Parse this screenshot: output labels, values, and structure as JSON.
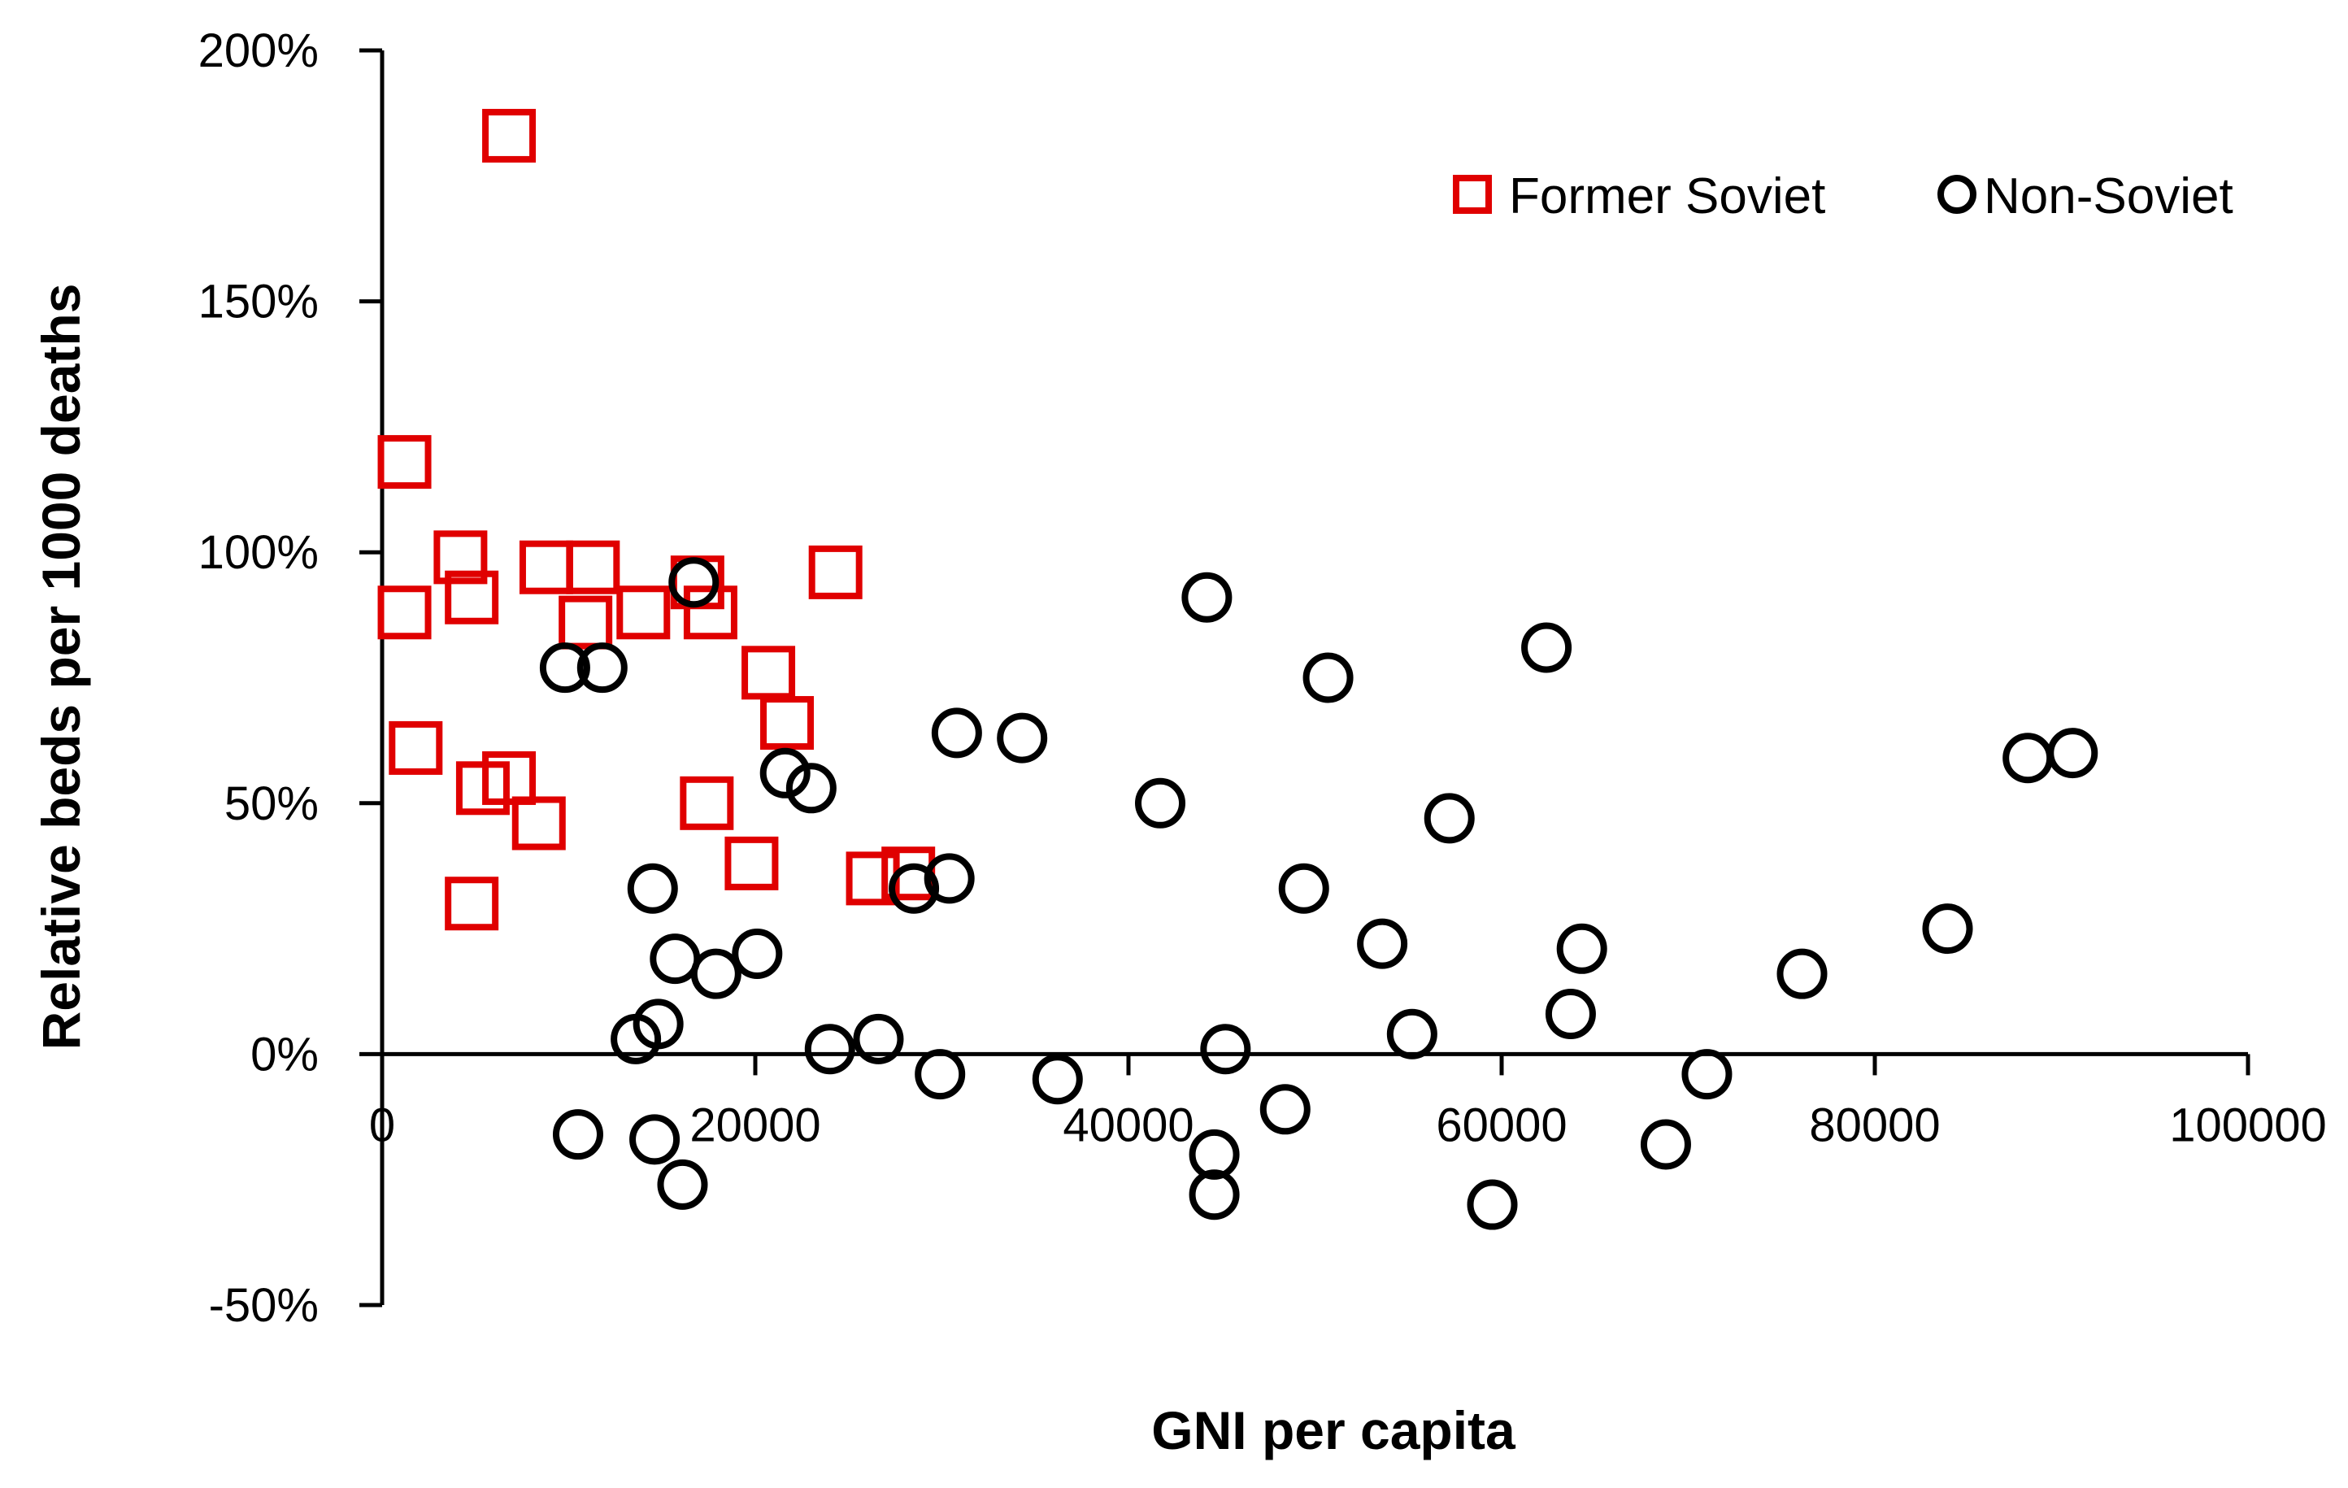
{
  "chart_data": {
    "type": "scatter",
    "title": "",
    "xlabel": "GNI per capita",
    "ylabel": "Relative beds per 1000 deaths",
    "xlim": [
      0,
      100000
    ],
    "ylim": [
      -50,
      200
    ],
    "x_ticks": [
      0,
      20000,
      40000,
      60000,
      80000,
      100000
    ],
    "x_tick_labels": [
      "0",
      "20000",
      "40000",
      "60000",
      "80000",
      "100000"
    ],
    "y_ticks": [
      -50,
      0,
      50,
      100,
      150,
      200
    ],
    "y_tick_labels": [
      "-50%",
      "0%",
      "50%",
      "100%",
      "150%",
      "200%"
    ],
    "grid": false,
    "legend_position": "top-right",
    "series": [
      {
        "name": "Former Soviet",
        "marker": "square",
        "color": "#e00000",
        "points": [
          {
            "x": 6800,
            "y": 183
          },
          {
            "x": 1200,
            "y": 118
          },
          {
            "x": 1200,
            "y": 88
          },
          {
            "x": 4200,
            "y": 99
          },
          {
            "x": 4800,
            "y": 91
          },
          {
            "x": 8800,
            "y": 97
          },
          {
            "x": 11300,
            "y": 97
          },
          {
            "x": 10900,
            "y": 86
          },
          {
            "x": 14000,
            "y": 88
          },
          {
            "x": 16900,
            "y": 94
          },
          {
            "x": 17600,
            "y": 88
          },
          {
            "x": 24300,
            "y": 96
          },
          {
            "x": 20700,
            "y": 76
          },
          {
            "x": 21700,
            "y": 66
          },
          {
            "x": 1800,
            "y": 61
          },
          {
            "x": 5400,
            "y": 53
          },
          {
            "x": 6800,
            "y": 55
          },
          {
            "x": 8400,
            "y": 46
          },
          {
            "x": 17400,
            "y": 50
          },
          {
            "x": 19800,
            "y": 38
          },
          {
            "x": 26300,
            "y": 35
          },
          {
            "x": 28200,
            "y": 36
          },
          {
            "x": 4800,
            "y": 30
          }
        ]
      },
      {
        "name": "Non-Soviet",
        "marker": "circle",
        "color": "#000000",
        "points": [
          {
            "x": 16700,
            "y": 94
          },
          {
            "x": 44200,
            "y": 91
          },
          {
            "x": 62400,
            "y": 81
          },
          {
            "x": 9800,
            "y": 77
          },
          {
            "x": 11800,
            "y": 77
          },
          {
            "x": 50700,
            "y": 75
          },
          {
            "x": 30800,
            "y": 64
          },
          {
            "x": 34300,
            "y": 63
          },
          {
            "x": 88200,
            "y": 59
          },
          {
            "x": 90600,
            "y": 60
          },
          {
            "x": 21600,
            "y": 56
          },
          {
            "x": 23000,
            "y": 53
          },
          {
            "x": 41700,
            "y": 50
          },
          {
            "x": 57200,
            "y": 47
          },
          {
            "x": 30400,
            "y": 35
          },
          {
            "x": 28500,
            "y": 33
          },
          {
            "x": 14500,
            "y": 33
          },
          {
            "x": 49400,
            "y": 33
          },
          {
            "x": 83900,
            "y": 25
          },
          {
            "x": 53600,
            "y": 22
          },
          {
            "x": 64300,
            "y": 21
          },
          {
            "x": 15700,
            "y": 19
          },
          {
            "x": 20100,
            "y": 20
          },
          {
            "x": 17900,
            "y": 16
          },
          {
            "x": 76100,
            "y": 16
          },
          {
            "x": 63700,
            "y": 8
          },
          {
            "x": 14800,
            "y": 6
          },
          {
            "x": 13600,
            "y": 3
          },
          {
            "x": 26600,
            "y": 3
          },
          {
            "x": 55200,
            "y": 4
          },
          {
            "x": 24000,
            "y": 1
          },
          {
            "x": 45200,
            "y": 1
          },
          {
            "x": 29900,
            "y": -4
          },
          {
            "x": 36200,
            "y": -5
          },
          {
            "x": 71000,
            "y": -4
          },
          {
            "x": 48400,
            "y": -11
          },
          {
            "x": 10500,
            "y": -16
          },
          {
            "x": 14600,
            "y": -17
          },
          {
            "x": 44600,
            "y": -20
          },
          {
            "x": 68800,
            "y": -18
          },
          {
            "x": 16100,
            "y": -26
          },
          {
            "x": 44600,
            "y": -28
          },
          {
            "x": 59500,
            "y": -30
          }
        ]
      }
    ]
  }
}
